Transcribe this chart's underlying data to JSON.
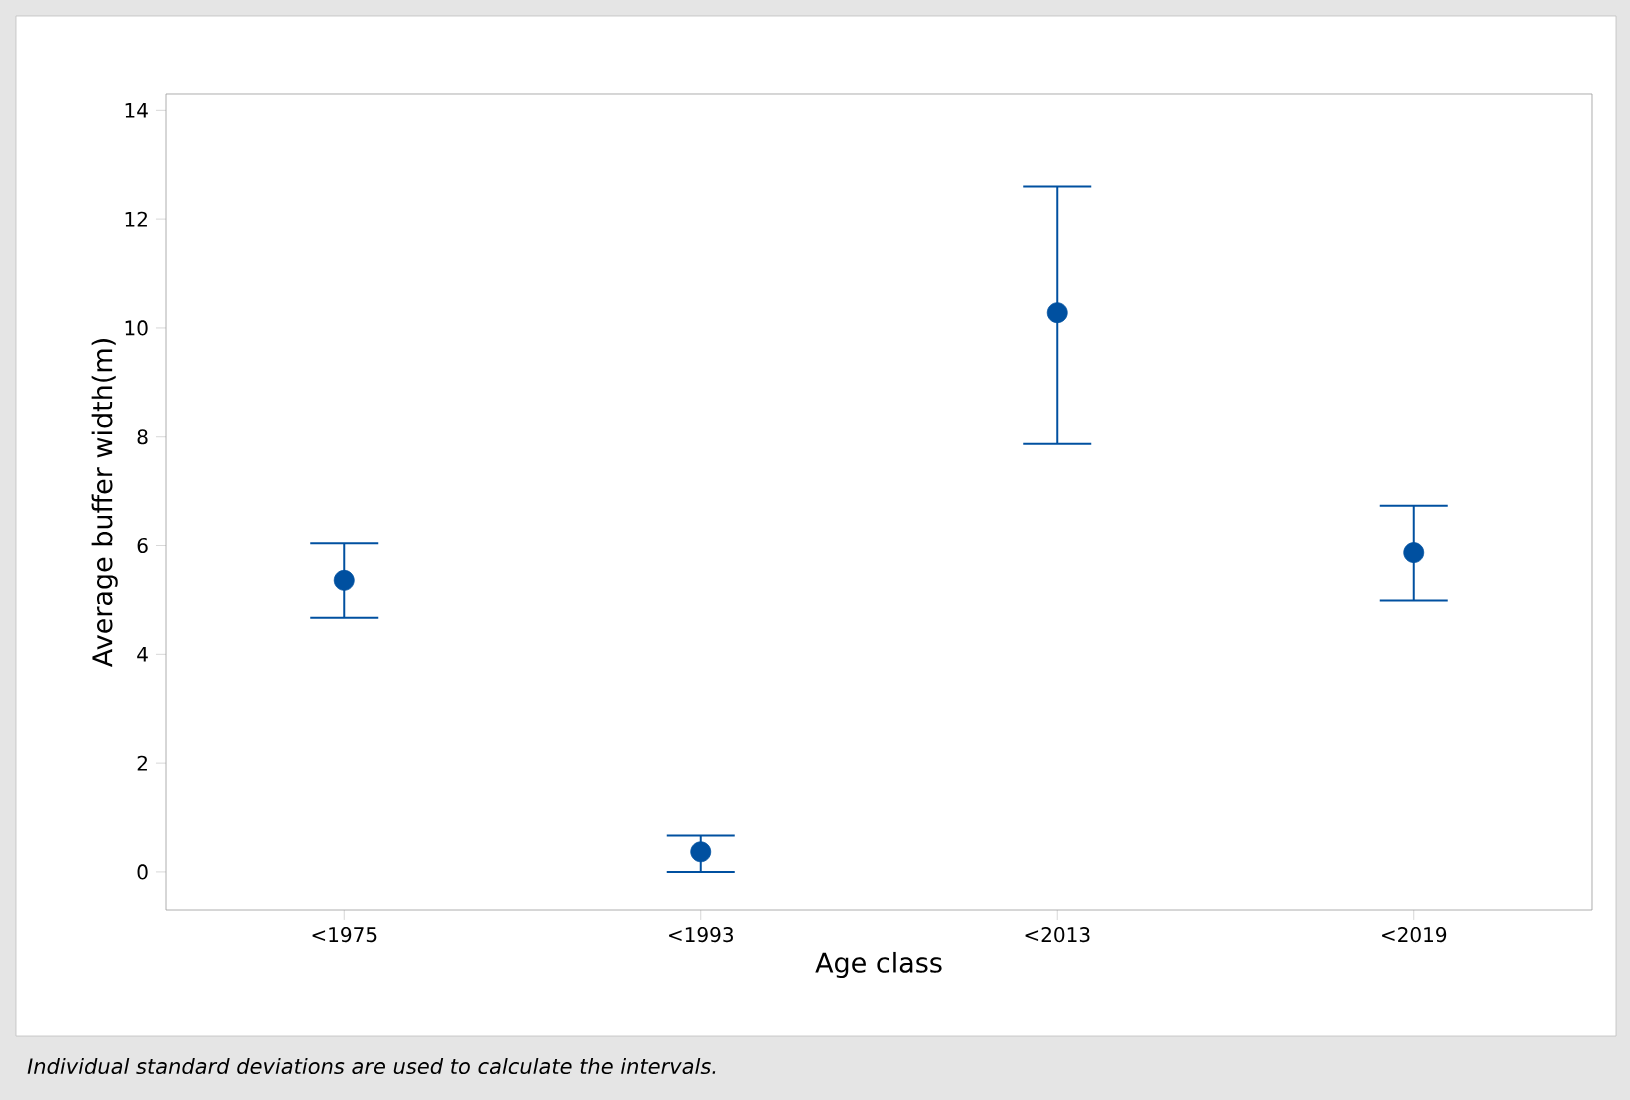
{
  "chart_data": {
    "type": "scatter",
    "xlabel": "Age class",
    "ylabel": "Average buffer width(m)",
    "categories": [
      "<1975",
      "<1993",
      "<2013",
      "<2019"
    ],
    "values": [
      5.36,
      0.37,
      10.28,
      5.87
    ],
    "errors": [
      [
        4.67,
        6.04
      ],
      [
        0.0,
        0.67
      ],
      [
        7.87,
        12.6
      ],
      [
        4.99,
        6.73
      ]
    ],
    "color": "#0050a0",
    "marker": "circle",
    "ylim": [
      -0.7,
      14.3
    ],
    "yticks": [
      0,
      2,
      4,
      6,
      8,
      10,
      12,
      14
    ],
    "annotations": [
      "Individual standard deviations are used to calculate the intervals."
    ]
  }
}
